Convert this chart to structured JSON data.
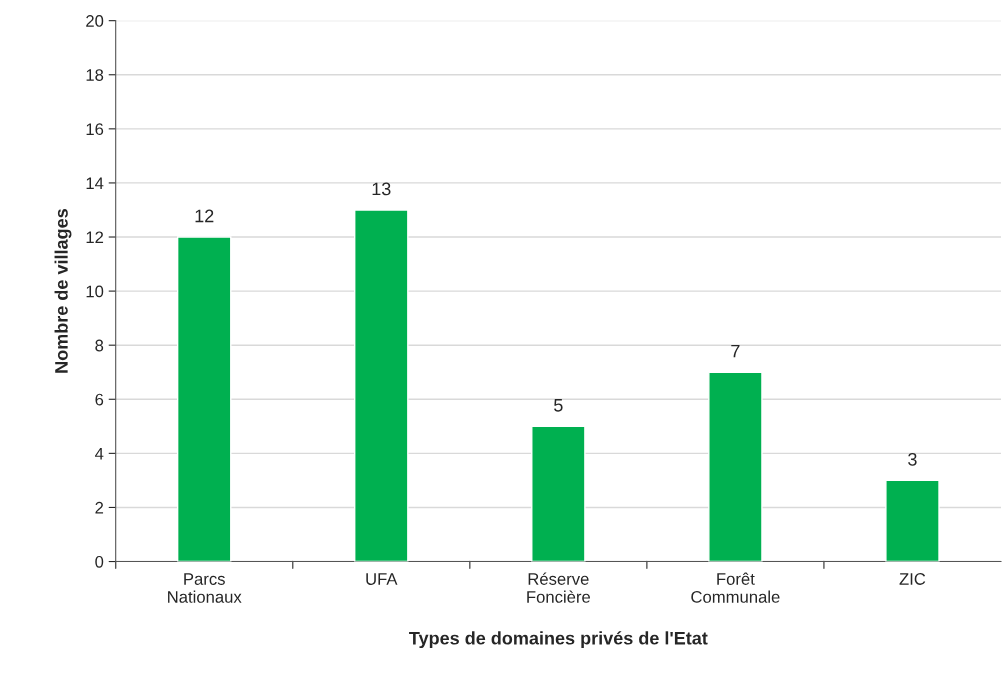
{
  "chart_data": {
    "type": "bar",
    "xlabel": "Types de domaines privés de l'Etat",
    "ylabel": "Nombre de villages",
    "categories": [
      "Parcs\nNationaux",
      "UFA",
      "Réserve\nFoncière",
      "Forêt\nCommunale",
      "ZIC"
    ],
    "values": [
      12,
      13,
      5,
      7,
      3
    ],
    "color": "#00b050",
    "ylim": [
      0,
      20
    ],
    "yticks": [
      0,
      2,
      4,
      6,
      8,
      10,
      12,
      14,
      16,
      18,
      20
    ],
    "grid": "y",
    "data_labels": true
  }
}
